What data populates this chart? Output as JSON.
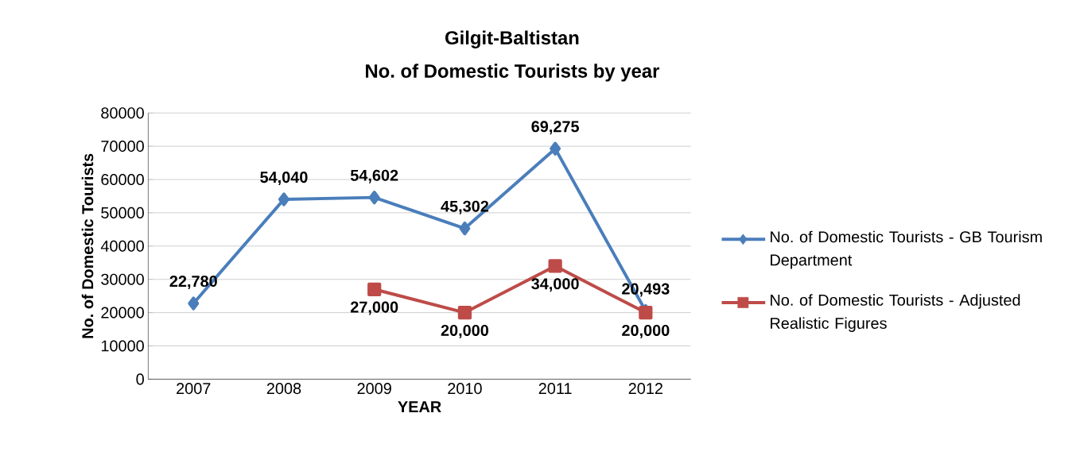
{
  "chart_data": {
    "type": "line",
    "title": "Gilgit-Baltistan",
    "subtitle": "No. of Domestic Tourists by year",
    "xlabel": "YEAR",
    "ylabel": "No. of Domestic Tourists",
    "categories": [
      "2007",
      "2008",
      "2009",
      "2010",
      "2011",
      "2012"
    ],
    "series": [
      {
        "name": "No. of Domestic Tourists - GB Tourism Department",
        "color": "#4a7ebb",
        "marker": "diamond",
        "values": [
          22780,
          54040,
          54602,
          45302,
          69275,
          20493
        ],
        "value_labels": [
          "22,780",
          "54,040",
          "54,602",
          "45,302",
          "69,275",
          "20,493"
        ]
      },
      {
        "name": "No. of Domestic Tourists - Adjusted Realistic Figures",
        "color": "#be4b48",
        "marker": "square",
        "values": [
          null,
          null,
          27000,
          20000,
          34000,
          20000
        ],
        "value_labels": [
          null,
          null,
          "27,000",
          "20,000",
          "34,000",
          "20,000"
        ]
      }
    ],
    "ylim": [
      0,
      80000
    ],
    "yticks": [
      0,
      10000,
      20000,
      30000,
      40000,
      50000,
      60000,
      70000,
      80000
    ],
    "grid": "y",
    "legend": "right",
    "line_style": "solid"
  }
}
